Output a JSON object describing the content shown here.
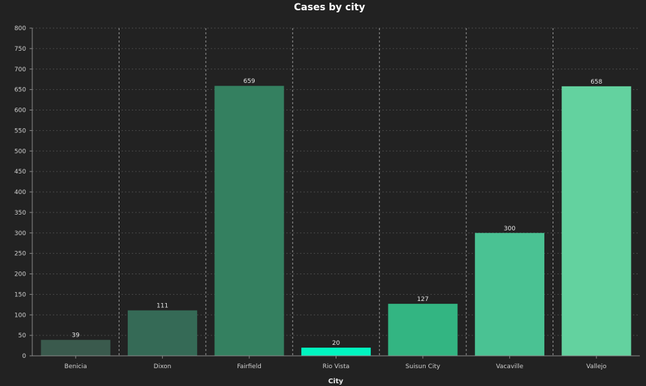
{
  "chart_data": {
    "type": "bar",
    "title": "Cases by city",
    "xlabel": "City",
    "ylabel": "",
    "ylim": [
      0,
      800
    ],
    "yticks": [
      0,
      50,
      100,
      150,
      200,
      250,
      300,
      350,
      400,
      450,
      500,
      550,
      600,
      650,
      700,
      750,
      800
    ],
    "grid": true,
    "categories": [
      "Benicia",
      "Dixon",
      "Fairfield",
      "Rio Vista",
      "Suisun City",
      "Vacaville",
      "Vallejo"
    ],
    "values": [
      39,
      111,
      659,
      20,
      127,
      300,
      658
    ],
    "colors": [
      "#3a5a4d",
      "#356a56",
      "#348060",
      "#00f5c0",
      "#33b582",
      "#4ac293",
      "#63d29f"
    ]
  }
}
